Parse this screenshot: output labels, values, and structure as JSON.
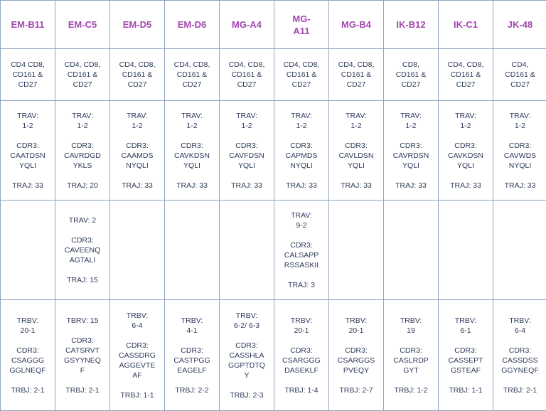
{
  "columns": [
    "EM-B11",
    "EM-C5",
    "EM-D5",
    "EM-D6",
    "MG-A4",
    "MG-\nA11",
    "MG-B4",
    "IK-B12",
    "IK-C1",
    "JK-48"
  ],
  "rows": {
    "markers": [
      "CD4  CD8,\nCD161 &\nCD27",
      "CD4, CD8,\nCD161 &\nCD27",
      "CD4, CD8,\nCD161 &\nCD27",
      "CD4, CD8,\nCD161 &\nCD27",
      "CD4, CD8,\nCD161 &\nCD27",
      "CD4, CD8,\nCD161 &\nCD27",
      "CD4, CD8,\nCD161 &\nCD27",
      "CD8,\nCD161 &\nCD27",
      "CD4, CD8,\nCD161 &\nCD27",
      "CD4,\nCD161 &\nCD27"
    ],
    "tra_primary": [
      "TRAV:\n1-2\n\nCDR3:\nCAATDSN\nYQLI\n\nTRAJ: 33",
      "TRAV:\n1-2\n\nCDR3:\nCAVRDGD\nYKLS\n\nTRAJ: 20",
      "TRAV:\n1-2\n\nCDR3:\nCAAMDS\nNYQLI\n\nTRAJ: 33",
      "TRAV:\n1-2\n\nCDR3:\nCAVKDSN\nYQLI\n\nTRAJ: 33",
      "TRAV:\n1-2\n\nCDR3:\nCAVFDSN\nYQLI\n\nTRAJ: 33",
      "TRAV:\n1-2\n\nCDR3:\nCAPMDS\nNYQLI\n\nTRAJ: 33",
      "TRAV:\n1-2\n\nCDR3:\nCAVLDSN\nYQLI\n\nTRAJ: 33",
      "TRAV:\n1-2\n\nCDR3:\nCAVRDSN\nYQLI\n\nTRAJ: 33",
      "TRAV:\n1-2\n\nCDR3:\nCAVKDSN\nYQLI\n\nTRAJ: 33",
      "TRAV:\n1-2\n\nCDR3:\nCAVWDS\nNYQLI\n\nTRAJ: 33"
    ],
    "tra_secondary": [
      "",
      "TRAV: 2\n\nCDR3:\nCAVEENQ\nAGTALI\n\nTRAJ: 15",
      "",
      "",
      "",
      "TRAV:\n9-2\n\nCDR3:\nCALSAPP\nRSSASKII\n\nTRAJ: 3",
      "",
      "",
      "",
      ""
    ],
    "trb": [
      "TRBV:\n20-1\n\nCDR3:\nCSAGGG\nGGLNEQF\n\nTRBJ: 2-1",
      "TBRV: 15\n\nCDR3:\nCATSRVT\nGSYYNEQ\nF\n\nTRBJ: 2-1",
      "TRBV:\n6-4\n\nCDR3:\nCASSDRG\nAGGEVTE\nAF\n\nTRBJ: 1-1",
      "TRBV:\n4-1\n\nCDR3:\nCASTPGG\nEAGELF\n\nTRBJ: 2-2",
      "TRBV:\n6-2/ 6-3\n\nCDR3:\nCASSHLA\nGGPTDTQ\nY\n\nTRBJ: 2-3",
      "TRBV:\n20-1\n\nCDR3:\nCSARGGG\nDASEKLF\n\nTRBJ: 1-4",
      "TRBV:\n20-1\n\nCDR3:\nCSARGGS\nPVEQY\n\nTRBJ: 2-7",
      "TRBV:\n19\n\nCDR3:\nCASLRDP\nGYT\n\nTRBJ: 1-2",
      "TRBV:\n6-1\n\nCDR3:\nCASSEPT\nGSTEAF\n\nTRBJ: 1-1",
      "TRBV:\n6-4\n\nCDR3:\nCASSDSS\nGGYNEQF\n\nTRBJ: 2-1"
    ]
  },
  "colors": {
    "header_text": "#a348b0",
    "body_text": "#2e3b5a",
    "grid_lines": "#8fa6c0"
  }
}
